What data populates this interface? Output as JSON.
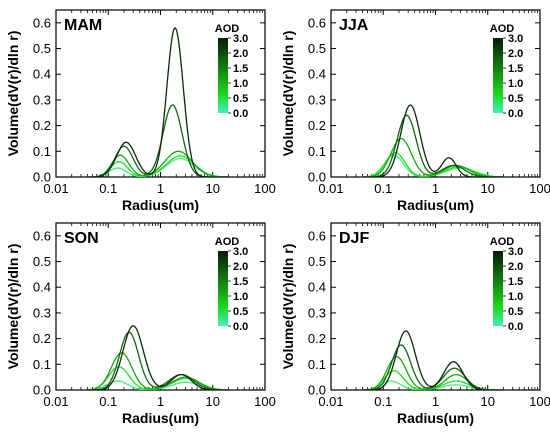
{
  "figure": {
    "x_axis_label": "Radius(um)",
    "y_axis_label": "Volume(dV(r)/dln r)",
    "colorbar_title": "AOD",
    "colorbar_ticks": [
      "3.0",
      "2.0",
      "1.5",
      "1.0",
      "0.5",
      "0.0"
    ]
  },
  "chart_data": [
    {
      "type": "line",
      "title": "MAM",
      "xlabel": "Radius(um)",
      "ylabel": "Volume(dV(r)/dln r)",
      "x_scale": "log",
      "xlim": [
        0.01,
        100
      ],
      "ylim": [
        0,
        0.65
      ],
      "x_ticks": [
        "0.01",
        "0.1",
        "1",
        "10",
        "100"
      ],
      "y_ticks": [
        "0.0",
        "0.1",
        "0.2",
        "0.3",
        "0.4",
        "0.5",
        "0.6"
      ],
      "series": [
        {
          "aod_level": 0.0,
          "color": "#44ee77",
          "modes": [
            {
              "r": 0.15,
              "a": 0.035,
              "s": 0.38
            },
            {
              "r": 2.4,
              "a": 0.072,
              "s": 0.62
            }
          ]
        },
        {
          "aod_level": 0.5,
          "color": "#22dd22",
          "modes": [
            {
              "r": 0.16,
              "a": 0.06,
              "s": 0.38
            },
            {
              "r": 2.4,
              "a": 0.082,
              "s": 0.62
            }
          ]
        },
        {
          "aod_level": 1.0,
          "color": "#11aa11",
          "modes": [
            {
              "r": 0.17,
              "a": 0.085,
              "s": 0.38
            },
            {
              "r": 2.2,
              "a": 0.1,
              "s": 0.6
            }
          ]
        },
        {
          "aod_level": 1.5,
          "color": "#116611",
          "modes": [
            {
              "r": 0.2,
              "a": 0.12,
              "s": 0.4
            },
            {
              "r": 1.7,
              "a": 0.28,
              "s": 0.42
            }
          ]
        },
        {
          "aod_level": 2.0,
          "color": "#0a2a0a",
          "modes": [
            {
              "r": 0.22,
              "a": 0.135,
              "s": 0.42
            },
            {
              "r": 1.9,
              "a": 0.58,
              "s": 0.36
            }
          ]
        }
      ]
    },
    {
      "type": "line",
      "title": "JJA",
      "xlabel": "Radius(um)",
      "ylabel": "Volume(dV(r)/dln r)",
      "x_scale": "log",
      "xlim": [
        0.01,
        100
      ],
      "ylim": [
        0,
        0.65
      ],
      "x_ticks": [
        "0.01",
        "0.1",
        "1",
        "10",
        "100"
      ],
      "y_ticks": [
        "0.0",
        "0.1",
        "0.2",
        "0.3",
        "0.4",
        "0.5",
        "0.6"
      ],
      "series": [
        {
          "aod_level": 0.0,
          "color": "#44ee77",
          "modes": [
            {
              "r": 0.16,
              "a": 0.085,
              "s": 0.42
            },
            {
              "r": 3.0,
              "a": 0.035,
              "s": 0.65
            }
          ]
        },
        {
          "aod_level": 0.5,
          "color": "#22dd22",
          "modes": [
            {
              "r": 0.17,
              "a": 0.095,
              "s": 0.42
            },
            {
              "r": 2.8,
              "a": 0.04,
              "s": 0.6
            }
          ]
        },
        {
          "aod_level": 1.0,
          "color": "#11aa11",
          "modes": [
            {
              "r": 0.22,
              "a": 0.15,
              "s": 0.45
            },
            {
              "r": 2.5,
              "a": 0.045,
              "s": 0.55
            }
          ]
        },
        {
          "aod_level": 1.5,
          "color": "#116611",
          "modes": [
            {
              "r": 0.28,
              "a": 0.24,
              "s": 0.42
            },
            {
              "r": 2.2,
              "a": 0.045,
              "s": 0.5
            }
          ]
        },
        {
          "aod_level": 2.0,
          "color": "#0a2a0a",
          "modes": [
            {
              "r": 0.33,
              "a": 0.28,
              "s": 0.42
            },
            {
              "r": 1.8,
              "a": 0.075,
              "s": 0.32
            }
          ]
        }
      ]
    },
    {
      "type": "line",
      "title": "SON",
      "xlabel": "Radius(um)",
      "ylabel": "Volume(dV(r)/dln r)",
      "x_scale": "log",
      "xlim": [
        0.01,
        100
      ],
      "ylim": [
        0,
        0.65
      ],
      "x_ticks": [
        "0.01",
        "0.1",
        "1",
        "10",
        "100"
      ],
      "y_ticks": [
        "0.0",
        "0.1",
        "0.2",
        "0.3",
        "0.4",
        "0.5",
        "0.6"
      ],
      "series": [
        {
          "aod_level": 0.0,
          "color": "#44ee77",
          "modes": [
            {
              "r": 0.15,
              "a": 0.035,
              "s": 0.45
            },
            {
              "r": 3.0,
              "a": 0.03,
              "s": 0.6
            }
          ]
        },
        {
          "aod_level": 0.5,
          "color": "#22dd22",
          "modes": [
            {
              "r": 0.16,
              "a": 0.09,
              "s": 0.45
            },
            {
              "r": 3.0,
              "a": 0.045,
              "s": 0.6
            }
          ]
        },
        {
          "aod_level": 1.0,
          "color": "#11aa11",
          "modes": [
            {
              "r": 0.18,
              "a": 0.145,
              "s": 0.45
            },
            {
              "r": 3.0,
              "a": 0.05,
              "s": 0.6
            }
          ]
        },
        {
          "aod_level": 1.5,
          "color": "#116611",
          "modes": [
            {
              "r": 0.25,
              "a": 0.225,
              "s": 0.42
            },
            {
              "r": 2.5,
              "a": 0.06,
              "s": 0.55
            }
          ]
        },
        {
          "aod_level": 2.0,
          "color": "#0a2a0a",
          "modes": [
            {
              "r": 0.3,
              "a": 0.25,
              "s": 0.45
            },
            {
              "r": 2.5,
              "a": 0.06,
              "s": 0.45
            }
          ]
        }
      ]
    },
    {
      "type": "line",
      "title": "DJF",
      "xlabel": "Radius(um)",
      "ylabel": "Volume(dV(r)/dln r)",
      "x_scale": "log",
      "xlim": [
        0.01,
        100
      ],
      "ylim": [
        0,
        0.65
      ],
      "x_ticks": [
        "0.01",
        "0.1",
        "1",
        "10",
        "100"
      ],
      "y_ticks": [
        "0.0",
        "0.1",
        "0.2",
        "0.3",
        "0.4",
        "0.5",
        "0.6"
      ],
      "series": [
        {
          "aod_level": 0.0,
          "color": "#44ee77",
          "modes": [
            {
              "r": 0.14,
              "a": 0.035,
              "s": 0.42
            },
            {
              "r": 2.5,
              "a": 0.02,
              "s": 0.6
            }
          ]
        },
        {
          "aod_level": 0.5,
          "color": "#22dd22",
          "modes": [
            {
              "r": 0.16,
              "a": 0.075,
              "s": 0.42
            },
            {
              "r": 2.5,
              "a": 0.035,
              "s": 0.55
            }
          ]
        },
        {
          "aod_level": 1.0,
          "color": "#11aa11",
          "modes": [
            {
              "r": 0.18,
              "a": 0.13,
              "s": 0.42
            },
            {
              "r": 2.5,
              "a": 0.06,
              "s": 0.5
            }
          ]
        },
        {
          "aod_level": 1.5,
          "color": "#116611",
          "modes": [
            {
              "r": 0.22,
              "a": 0.175,
              "s": 0.42
            },
            {
              "r": 2.3,
              "a": 0.085,
              "s": 0.48
            }
          ]
        },
        {
          "aod_level": 2.0,
          "color": "#0a2a0a",
          "modes": [
            {
              "r": 0.27,
              "a": 0.23,
              "s": 0.42
            },
            {
              "r": 2.2,
              "a": 0.11,
              "s": 0.42
            }
          ]
        }
      ]
    }
  ]
}
